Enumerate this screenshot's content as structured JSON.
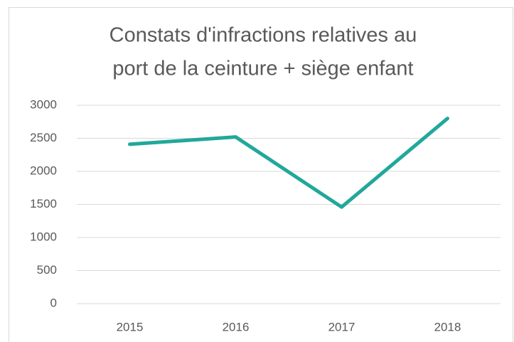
{
  "chart_data": {
    "type": "line",
    "title": [
      "Constats d'infractions relatives au",
      "port de la ceinture + siège enfant"
    ],
    "categories": [
      "2015",
      "2016",
      "2017",
      "2018"
    ],
    "series": [
      {
        "name": "Constats",
        "color": "#21a89a",
        "values": [
          2410,
          2520,
          1460,
          2800
        ]
      }
    ],
    "ylim": [
      0,
      3000
    ],
    "yticks": [
      0,
      500,
      1000,
      1500,
      2000,
      2500,
      3000
    ],
    "grid": true
  }
}
